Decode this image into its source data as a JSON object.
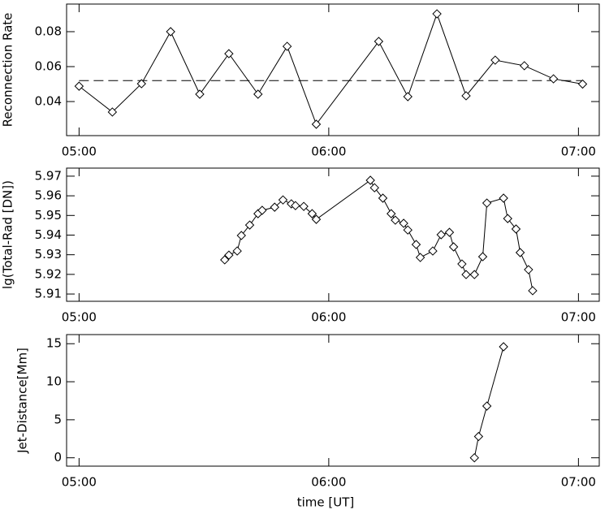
{
  "chart_data": [
    {
      "type": "line",
      "ylabel": "Reconnection Rate",
      "color": "#000000",
      "marker": "diamond",
      "x": [
        "05:00",
        "05:08",
        "05:15",
        "05:22",
        "05:29",
        "05:36",
        "05:43",
        "05:50",
        "05:57",
        "06:12",
        "06:19",
        "06:26",
        "06:33",
        "06:40",
        "06:47",
        "06:54",
        "07:01"
      ],
      "values": [
        0.0488,
        0.034,
        0.0502,
        0.08,
        0.0442,
        0.0674,
        0.0442,
        0.0716,
        0.027,
        0.0744,
        0.0428,
        0.0902,
        0.0433,
        0.0637,
        0.0605,
        0.053,
        0.05
      ],
      "reference_line": 0.052,
      "xlim": [
        "04:57",
        "07:05"
      ],
      "xticks": [
        "05:00",
        "06:00",
        "07:00"
      ],
      "ylim": [
        0.0205,
        0.0958
      ],
      "yticks": [
        0.04,
        0.06,
        0.08
      ]
    },
    {
      "type": "line",
      "ylabel": "lg(Total-Rad [DN])",
      "color": "#000000",
      "marker": "diamond",
      "x": [
        "05:35",
        "05:36",
        "05:38",
        "05:39",
        "05:41",
        "05:43",
        "05:44",
        "05:47",
        "05:49",
        "05:51",
        "05:52",
        "05:54",
        "05:56",
        "05:57",
        "06:10",
        "06:11",
        "06:13",
        "06:15",
        "06:16",
        "06:18",
        "06:19",
        "06:21",
        "06:22",
        "06:25",
        "06:27",
        "06:29",
        "06:30",
        "06:32",
        "06:33",
        "06:35",
        "06:37",
        "06:38",
        "06:42",
        "06:43",
        "06:45",
        "06:46",
        "06:48",
        "06:49"
      ],
      "values": [
        5.9274,
        5.9298,
        5.9319,
        5.9398,
        5.9451,
        5.9509,
        5.9526,
        5.9542,
        5.9579,
        5.9559,
        5.955,
        5.9546,
        5.9509,
        5.948,
        5.9679,
        5.9641,
        5.9588,
        5.9509,
        5.9476,
        5.946,
        5.9426,
        5.9352,
        5.9286,
        5.9319,
        5.9402,
        5.9414,
        5.934,
        5.9253,
        5.9199,
        5.9199,
        5.929,
        5.9563,
        5.9588,
        5.9484,
        5.9431,
        5.9311,
        5.9224,
        5.9117
      ],
      "xlim": [
        "04:57",
        "07:05"
      ],
      "xticks": [
        "05:00",
        "06:00",
        "07:00"
      ],
      "ylim": [
        5.9063,
        5.9741
      ],
      "yticks": [
        5.91,
        5.92,
        5.93,
        5.94,
        5.95,
        5.96,
        5.97
      ]
    },
    {
      "type": "line",
      "ylabel": "Jet-Distance[Mm]",
      "xlabel": "time [UT]",
      "color": "#000000",
      "marker": "diamond",
      "x": [
        "06:35",
        "06:36",
        "06:38",
        "06:42"
      ],
      "values": [
        0,
        2.8,
        6.8,
        14.6
      ],
      "xlim": [
        "04:57",
        "07:05"
      ],
      "xticks": [
        "05:00",
        "06:00",
        "07:00"
      ],
      "ylim": [
        -1.1,
        16.2
      ],
      "yticks": [
        0,
        5,
        10,
        15
      ]
    }
  ]
}
